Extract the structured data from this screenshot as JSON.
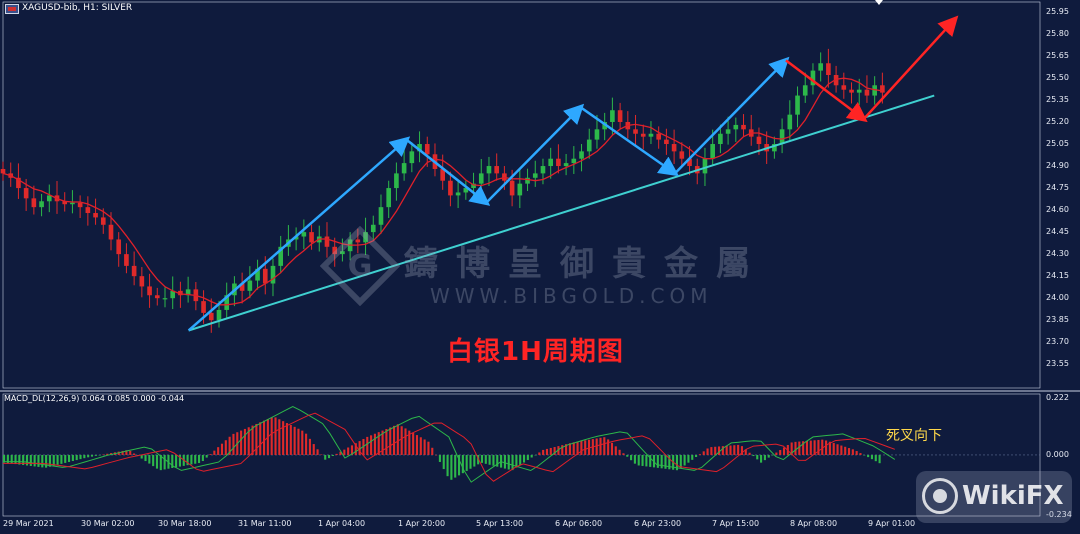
{
  "symbol": "XAGUSD-bib, H1:  SILVER",
  "macd_label": "MACD_DL(12,26,9) 0.064 0.085 0.000 -0.044",
  "caption": "白银1H周期图",
  "annotation": "死叉向下",
  "watermark": {
    "title": "鑄博皇御貴金屬",
    "url": "WWW.BIBGOLD.COM"
  },
  "badge": "WikiFX",
  "colors": {
    "background": "#0f1b3d",
    "bull": "#2db84a",
    "bear": "#e02a2a",
    "ma": "#e0202a",
    "trendline": "#3fd0d0",
    "zigzag": "#2ea8ff",
    "projection": "#ff2424",
    "macd_signal_green": "#2db84a"
  },
  "price_axis": [
    "25.95",
    "25.80",
    "25.65",
    "25.50",
    "25.35",
    "25.20",
    "25.05",
    "24.90",
    "24.75",
    "24.60",
    "24.45",
    "24.30",
    "24.15",
    "24.00",
    "23.85",
    "23.70",
    "23.55"
  ],
  "macd_axis": [
    "0.222",
    "0.000",
    "-0.234"
  ],
  "time_axis": [
    "29 Mar 2021",
    "30 Mar 02:00",
    "30 Mar 18:00",
    "31 Mar 11:00",
    "1 Apr 04:00",
    "1 Apr 20:00",
    "5 Apr 13:00",
    "6 Apr 06:00",
    "6 Apr 23:00",
    "7 Apr 15:00",
    "8 Apr 08:00",
    "9 Apr 01:00"
  ],
  "chart_data": {
    "type": "candlestick",
    "price_range": [
      23.47,
      25.99
    ],
    "macd_range": [
      -0.234,
      0.222
    ],
    "close_path": [
      24.85,
      24.82,
      24.75,
      24.68,
      24.62,
      24.66,
      24.7,
      24.66,
      24.64,
      24.65,
      24.62,
      24.58,
      24.55,
      24.5,
      24.4,
      24.3,
      24.22,
      24.15,
      24.08,
      24.02,
      24.0,
      24.0,
      24.05,
      24.02,
      24.06,
      23.98,
      23.9,
      23.85,
      23.92,
      24.02,
      24.1,
      24.05,
      24.12,
      24.2,
      24.1,
      24.22,
      24.35,
      24.4,
      24.42,
      24.45,
      24.38,
      24.42,
      24.35,
      24.3,
      24.32,
      24.4,
      24.38,
      24.45,
      24.5,
      24.62,
      24.75,
      24.85,
      24.92,
      25.0,
      25.05,
      24.98,
      24.88,
      24.8,
      24.7,
      24.72,
      24.75,
      24.78,
      24.85,
      24.9,
      24.85,
      24.8,
      24.7,
      24.78,
      24.82,
      24.85,
      24.9,
      24.95,
      24.9,
      24.92,
      24.95,
      25.0,
      25.08,
      25.15,
      25.2,
      25.28,
      25.2,
      25.15,
      25.12,
      25.1,
      25.12,
      25.08,
      25.05,
      25.0,
      24.95,
      24.9,
      24.85,
      24.95,
      25.05,
      25.12,
      25.15,
      25.18,
      25.15,
      25.1,
      25.05,
      25.0,
      25.05,
      25.15,
      25.25,
      25.38,
      25.45,
      25.55,
      25.6,
      25.52,
      25.45,
      25.42,
      25.4,
      25.42,
      25.38,
      25.45,
      25.4
    ],
    "zigzag": [
      [
        0.179,
        23.78
      ],
      [
        0.389,
        25.08
      ],
      [
        0.466,
        24.65
      ],
      [
        0.557,
        25.3
      ],
      [
        0.648,
        24.85
      ],
      [
        0.755,
        25.62
      ],
      [
        0.83,
        25.22
      ]
    ],
    "trendline": [
      [
        0.179,
        23.78
      ],
      [
        0.898,
        25.38
      ]
    ],
    "projection": [
      [
        0.83,
        25.22
      ],
      [
        0.918,
        25.9
      ]
    ],
    "annotation_text": "死叉向下"
  }
}
